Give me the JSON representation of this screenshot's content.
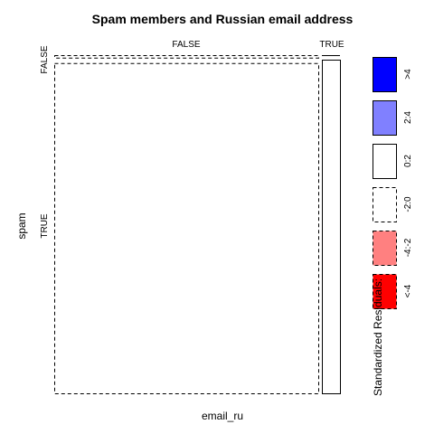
{
  "chart_data": {
    "type": "mosaic",
    "title": "Spam members and Russian email address",
    "xlabel": "email_ru",
    "ylabel": "spam",
    "x_categories": [
      "FALSE",
      "TRUE"
    ],
    "y_categories": [
      "FALSE",
      "TRUE"
    ],
    "cells": [
      {
        "x": "FALSE",
        "y": "FALSE",
        "proportion_of_x": 0.01,
        "residual_class": "-2:0"
      },
      {
        "x": "FALSE",
        "y": "TRUE",
        "proportion_of_x": 0.99,
        "residual_class": "-2:0"
      },
      {
        "x": "TRUE",
        "y": "FALSE",
        "proportion_of_x": 0.0,
        "residual_class": "0:2"
      },
      {
        "x": "TRUE",
        "y": "TRUE",
        "proportion_of_x": 1.0,
        "residual_class": "0:2"
      }
    ],
    "x_proportions": {
      "FALSE": 0.92,
      "TRUE": 0.05
    },
    "legend": {
      "title": "Standardized Residuals:",
      "entries": [
        {
          "label": ">4",
          "color": "#0000ff",
          "dashed": false
        },
        {
          "label": "2:4",
          "color": "#8080ff",
          "dashed": false
        },
        {
          "label": "0:2",
          "color": "#ffffff",
          "dashed": false
        },
        {
          "label": "-2:0",
          "color": "#ffffff",
          "dashed": true
        },
        {
          "label": "-4:-2",
          "color": "#ff8080",
          "dashed": true
        },
        {
          "label": "<-4",
          "color": "#ff0000",
          "dashed": true
        }
      ]
    }
  }
}
